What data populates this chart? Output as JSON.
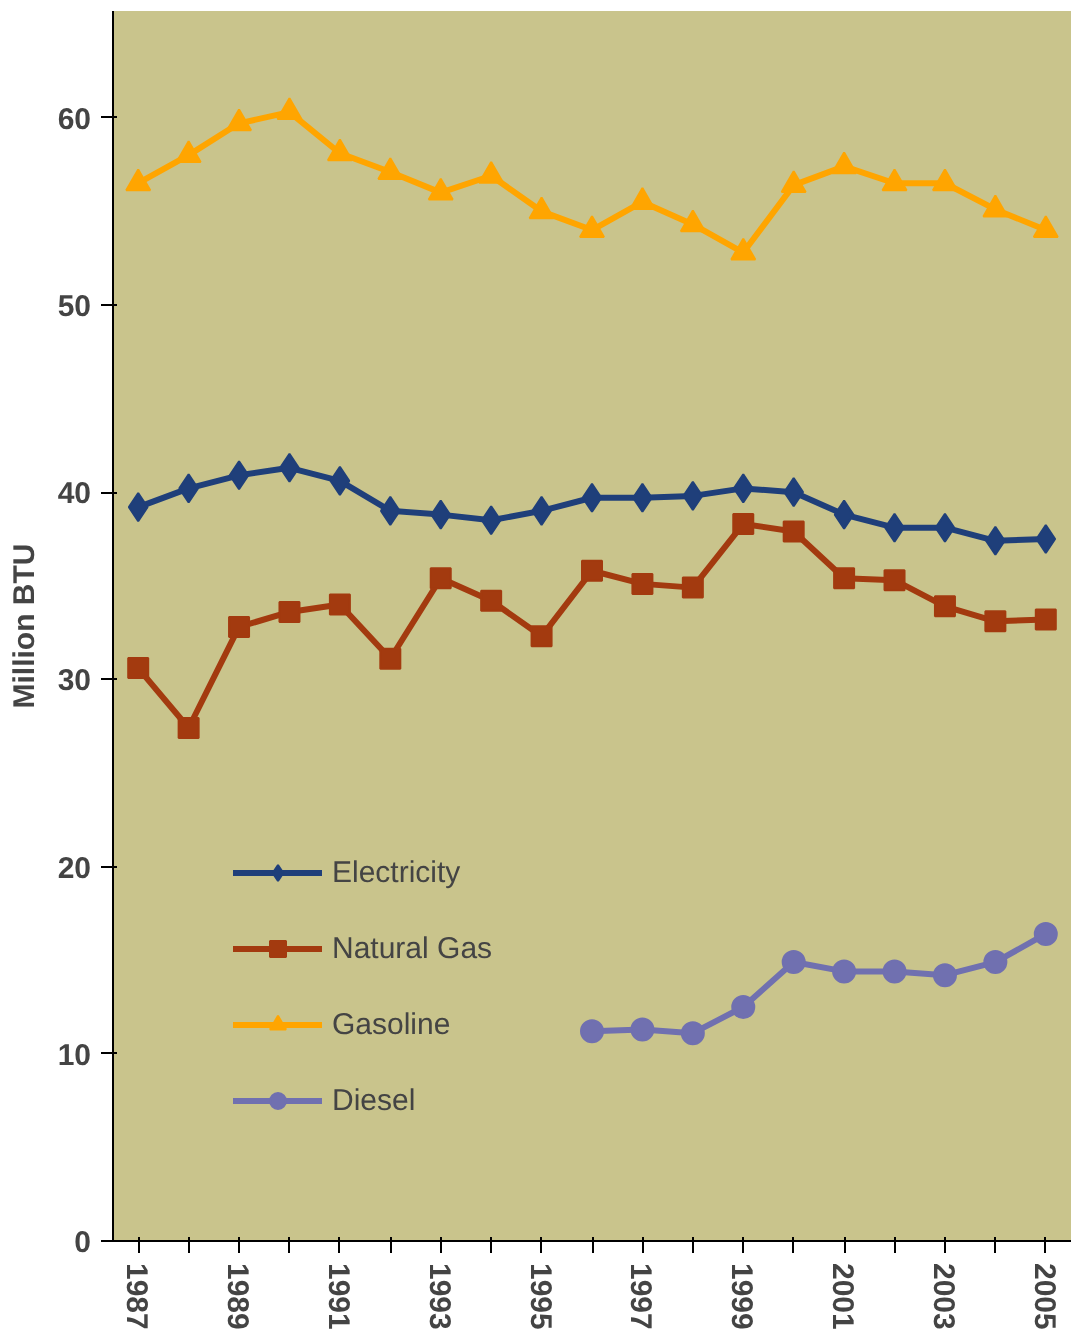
{
  "chart_data": {
    "type": "line",
    "ylabel": "Million BTU",
    "x": [
      1987,
      1988,
      1989,
      1990,
      1991,
      1992,
      1993,
      1994,
      1995,
      1996,
      1997,
      1998,
      1999,
      2000,
      2001,
      2002,
      2003,
      2004,
      2005
    ],
    "series": [
      {
        "name": "Electricity",
        "color": "#1f3f7a",
        "marker": "diamond",
        "values": [
          39.2,
          40.2,
          40.9,
          41.3,
          40.6,
          39.0,
          38.8,
          38.5,
          39.0,
          39.7,
          39.7,
          39.8,
          40.2,
          40.0,
          38.8,
          38.1,
          38.1,
          37.4,
          37.5
        ]
      },
      {
        "name": "Natural Gas",
        "color": "#a33a0f",
        "marker": "square",
        "values": [
          30.6,
          27.4,
          32.8,
          33.6,
          34.0,
          31.1,
          35.4,
          34.2,
          32.3,
          35.8,
          35.1,
          34.9,
          38.3,
          37.9,
          35.4,
          35.3,
          33.9,
          33.1,
          33.2
        ]
      },
      {
        "name": "Gasoline",
        "color": "#ffa500",
        "marker": "triangle",
        "values": [
          56.5,
          58.0,
          59.7,
          60.3,
          58.1,
          57.1,
          56.0,
          56.9,
          55.0,
          54.0,
          55.5,
          54.3,
          52.8,
          56.4,
          57.4,
          56.5,
          56.5,
          55.1,
          54.0
        ]
      },
      {
        "name": "Diesel",
        "color": "#7070b0",
        "marker": "circle",
        "values": [
          null,
          null,
          null,
          null,
          null,
          null,
          null,
          null,
          null,
          11.2,
          11.3,
          11.1,
          12.5,
          14.9,
          14.4,
          14.4,
          14.2,
          14.9,
          16.4
        ]
      }
    ],
    "xlim": [
      1986.5,
      2005.5
    ],
    "xticks": [
      1987,
      {
        "value": 1988,
        "label": null
      },
      1989,
      {
        "value": 1990,
        "label": null
      },
      1991,
      {
        "value": 1992,
        "label": null
      },
      1993,
      {
        "value": 1994,
        "label": null
      },
      1995,
      {
        "value": 1996,
        "label": null
      },
      1997,
      {
        "value": 1998,
        "label": null
      },
      1999,
      {
        "value": 2000,
        "label": null
      },
      2001,
      {
        "value": 2002,
        "label": null
      },
      2003,
      {
        "value": 2004,
        "label": null
      },
      2005
    ],
    "ylim": [
      0,
      65.7
    ],
    "yticks": [
      0,
      10,
      20,
      30,
      40,
      50,
      60
    ],
    "grid": false,
    "legend": "bottom left",
    "line_style": "solid"
  }
}
